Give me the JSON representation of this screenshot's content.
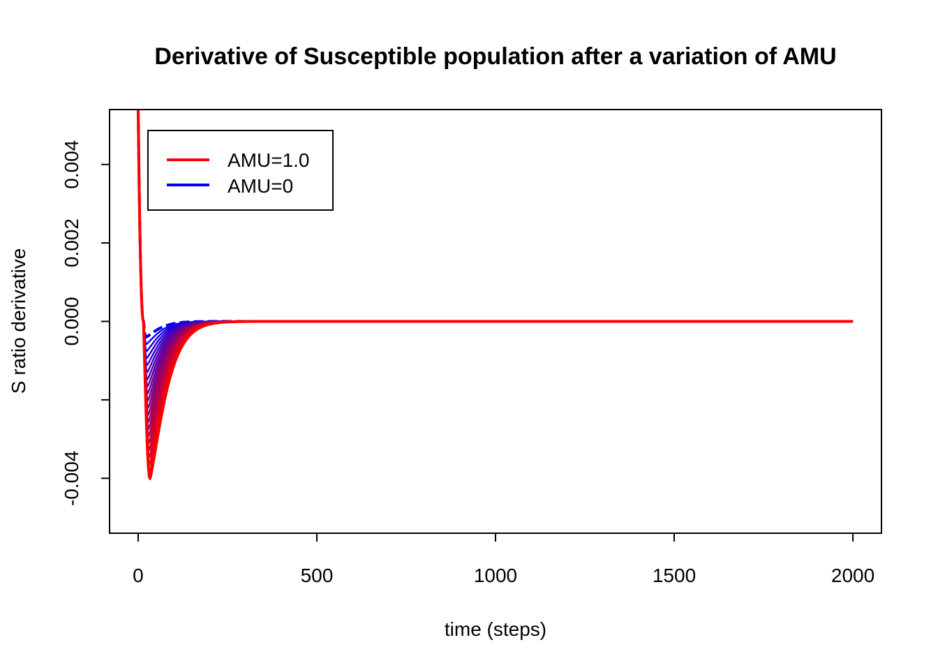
{
  "chart_data": {
    "type": "line",
    "title": "Derivative of Susceptible population after a variation of  AMU",
    "xlabel": "time (steps)",
    "ylabel": "S ratio derivative",
    "xlim": [
      -80,
      2080
    ],
    "ylim": [
      -0.0054,
      0.0054
    ],
    "x_ticks": [
      0,
      500,
      1000,
      1500,
      2000
    ],
    "x_tick_labels": [
      "0",
      "500",
      "1000",
      "1500",
      "2000"
    ],
    "y_ticks": [
      -0.004,
      -0.002,
      0.0,
      0.002,
      0.004
    ],
    "y_tick_labels": [
      "-0.004",
      "",
      "0.000",
      "0.002",
      "0.004"
    ],
    "grid": false,
    "legend": {
      "position": "top-left",
      "entries": [
        {
          "label": "AMU=1.0",
          "color": "#ff0000"
        },
        {
          "label": "AMU=0",
          "color": "#0000ff"
        }
      ]
    },
    "series_summary": {
      "count": 21,
      "amu_from": 0.0,
      "amu_to": 1.0,
      "color_from": "#0000ff",
      "color_to": "#ff0000",
      "description": "Each curve starts high near t=0, drops to a negative minimum around t=20-35 (about -0.0004 for AMU=0, about -0.0040 for AMU=1.0) and decays back to 0 by t~400; lines extend to t=2000 at 0."
    },
    "series_shape": {
      "start_value": 0.0055,
      "t_cross": 15,
      "t_min_low": 22,
      "t_min_high": 33,
      "min_low": -0.0004,
      "min_high": -0.004,
      "decay_low": 45,
      "decay_high": 55,
      "t_end": 2000
    }
  }
}
